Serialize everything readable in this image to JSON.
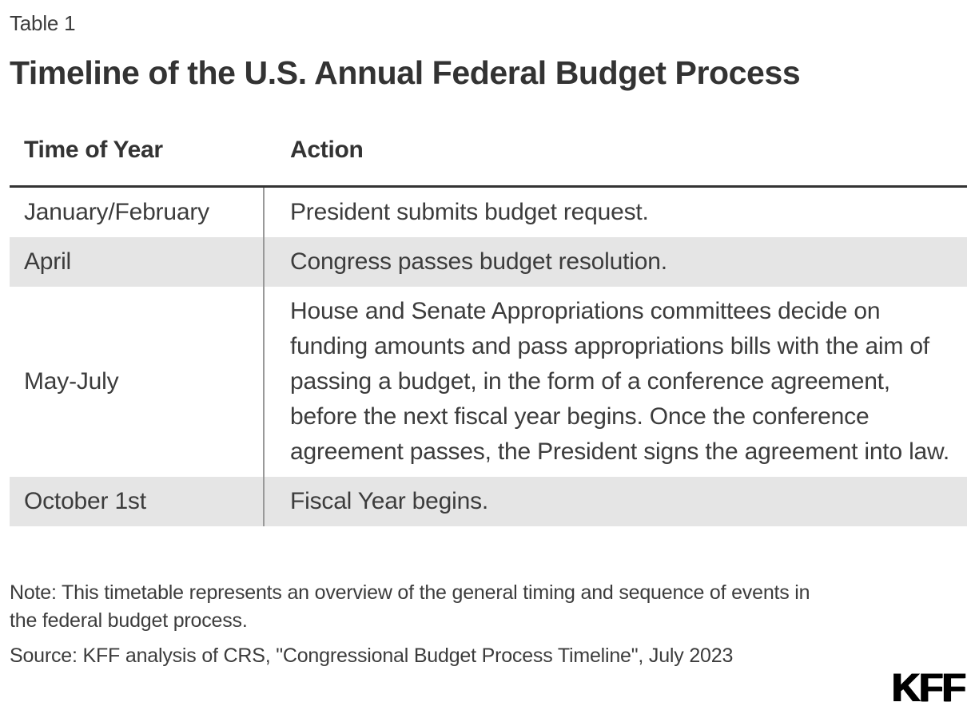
{
  "page": {
    "table_label": "Table 1",
    "title": "Timeline of the U.S. Annual Federal Budget Process"
  },
  "table": {
    "columns": [
      "Time of Year",
      "Action"
    ],
    "rows": [
      {
        "time": "January/February",
        "action": "President submits budget request.",
        "shaded": false
      },
      {
        "time": "April",
        "action": "Congress passes budget resolution.",
        "shaded": true
      },
      {
        "time": "May-July",
        "action": "House and Senate Appropriations committees decide on funding amounts and pass appropriations bills with the aim of passing a budget, in the form of a conference agreement, before the next fiscal year begins. Once the conference agreement passes, the President signs the agreement into law.",
        "shaded": false
      },
      {
        "time": "October 1st",
        "action": "Fiscal Year begins.",
        "shaded": true
      }
    ]
  },
  "footer": {
    "note_lines": [
      "Note: This timetable represents an overview of the general timing and sequence of events in",
      "the federal budget process."
    ],
    "source": "Source: KFF analysis of CRS, \"Congressional Budget Process Timeline\", July 2023",
    "logo": "KFF"
  },
  "colors": {
    "background": "#ffffff",
    "text": "#3c3c3c",
    "title_text": "#333333",
    "shaded_row": "#e5e5e5",
    "header_rule": "#333333",
    "column_divider": "#999999",
    "logo": "#000000"
  }
}
